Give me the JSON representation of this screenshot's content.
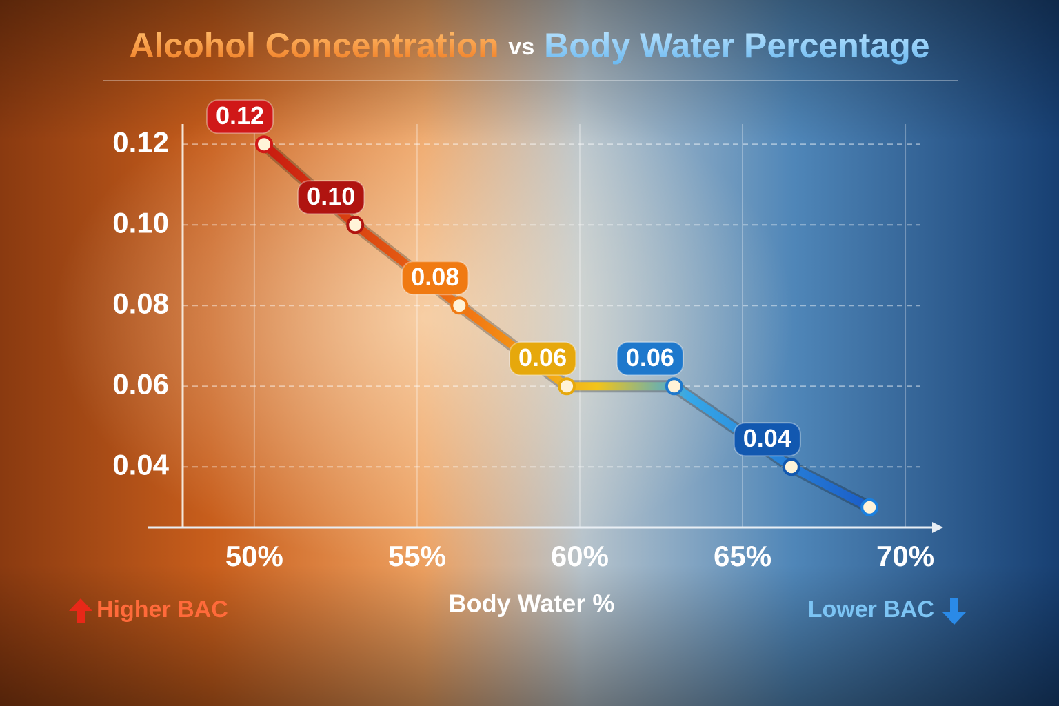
{
  "chart_data": {
    "type": "line",
    "title": [
      "Alcohol Concentration",
      "vs",
      "Body Water Percentage"
    ],
    "x_label": "Body Water %",
    "annotations": {
      "left": "Higher BAC",
      "right": "Lower BAC"
    },
    "x": [
      50.3,
      53.1,
      56.3,
      59.6,
      62.9,
      66.5,
      68.9
    ],
    "series": [
      {
        "values": [
          0.12,
          0.1,
          0.08,
          0.06,
          0.06,
          0.04,
          0.03
        ],
        "value_labels": [
          "0.12",
          "0.10",
          "0.08",
          "0.06",
          "0.06",
          "0.04",
          null
        ],
        "colors": [
          "#d01818",
          "#b01410",
          "#f07a12",
          "#e6a80c",
          "#1e78cc",
          "#1258b0",
          "#1a80e0"
        ]
      }
    ],
    "xlim": [
      47.8,
      71.1
    ],
    "xticks": [
      {
        "value": 50,
        "label": "50%"
      },
      {
        "value": 55,
        "label": "55%"
      },
      {
        "value": 60,
        "label": "60%"
      },
      {
        "value": 65,
        "label": "65%"
      },
      {
        "value": 70,
        "label": "70%"
      }
    ],
    "ylim": [
      0.025,
      0.125
    ],
    "yticks": [
      {
        "value": 0.12,
        "label": "0.12"
      },
      {
        "value": 0.1,
        "label": "0.10"
      },
      {
        "value": 0.08,
        "label": "0.08"
      },
      {
        "value": 0.06,
        "label": "0.06"
      },
      {
        "value": 0.04,
        "label": "0.04"
      }
    ],
    "grid": true
  }
}
